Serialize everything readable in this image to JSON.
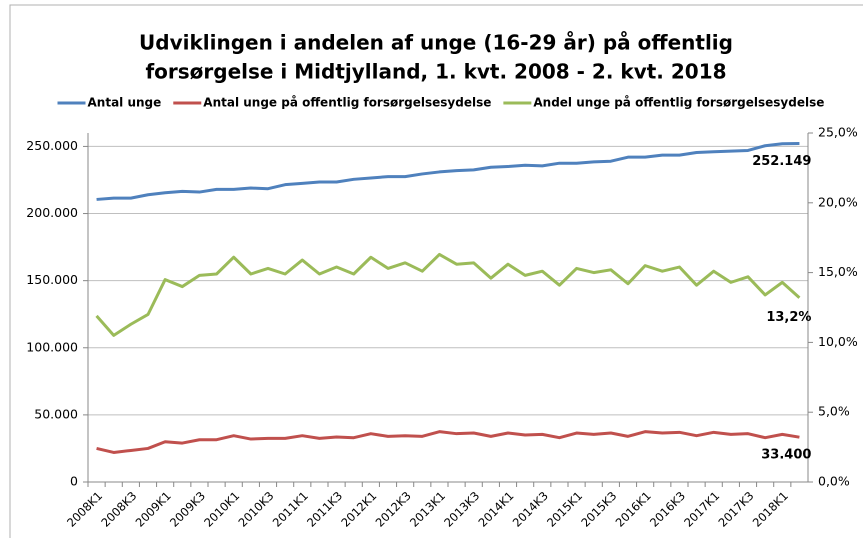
{
  "chart_data": {
    "type": "line",
    "title": [
      "Udviklingen i andelen af unge (16-29 år) på offentlig",
      "forsørgelse i Midtjylland, 1. kvt. 2008 - 2. kvt. 2018"
    ],
    "categories": [
      "2008K1",
      null,
      "2008K3",
      null,
      "2009K1",
      null,
      "2009K3",
      null,
      "2010K1",
      null,
      "2010K3",
      null,
      "2011K1",
      null,
      "2011K3",
      null,
      "2012K1",
      null,
      "2012K3",
      null,
      "2013K1",
      null,
      "2013K3",
      null,
      "2014K1",
      null,
      "2014K3",
      null,
      "2015K1",
      null,
      "2015K3",
      null,
      "2016K1",
      null,
      "2016K3",
      null,
      "2017K1",
      null,
      "2017K3",
      null,
      "2018K1",
      null
    ],
    "series": [
      {
        "name": "Antal unge",
        "color": "#4f81bd",
        "values": [
          210500,
          211500,
          211500,
          214000,
          215500,
          216500,
          216000,
          218000,
          218000,
          219000,
          218500,
          221500,
          222500,
          223500,
          223500,
          225500,
          226500,
          227500,
          227500,
          229500,
          231000,
          232000,
          232500,
          234500,
          235000,
          236000,
          235500,
          237500,
          237500,
          238500,
          239000,
          242000,
          242000,
          243500,
          243500,
          245500,
          246000,
          246500,
          247000,
          250500,
          252000,
          252149
        ],
        "value_labels": [
          null,
          null,
          null,
          null,
          null,
          null,
          null,
          null,
          null,
          null,
          null,
          null,
          null,
          null,
          null,
          null,
          null,
          null,
          null,
          null,
          null,
          null,
          null,
          null,
          null,
          null,
          null,
          null,
          null,
          null,
          null,
          null,
          null,
          null,
          null,
          null,
          null,
          null,
          null,
          null,
          null,
          "252.149"
        ]
      },
      {
        "name": "Antal unge på offentlig forsørgelsesydelse",
        "color": "#c0504d",
        "values": [
          25000,
          22000,
          23500,
          25000,
          30000,
          29000,
          31500,
          31500,
          34500,
          32000,
          32500,
          32500,
          34500,
          32500,
          33500,
          33000,
          36000,
          34000,
          34500,
          34000,
          37500,
          36000,
          36500,
          34000,
          36500,
          35000,
          35500,
          33000,
          36500,
          35500,
          36500,
          34000,
          37500,
          36500,
          37000,
          34500,
          37000,
          35500,
          36000,
          33000,
          35500,
          33400
        ],
        "value_labels": [
          null,
          null,
          null,
          null,
          null,
          null,
          null,
          null,
          null,
          null,
          null,
          null,
          null,
          null,
          null,
          null,
          null,
          null,
          null,
          null,
          null,
          null,
          null,
          null,
          null,
          null,
          null,
          null,
          null,
          null,
          null,
          null,
          null,
          null,
          null,
          null,
          null,
          null,
          null,
          null,
          null,
          "33.400"
        ]
      },
      {
        "name": "Andel unge på offentlig forsørgelsesydelse",
        "color": "#9bbb59",
        "axis": "y2",
        "values": [
          11.9,
          10.5,
          11.3,
          12.0,
          14.5,
          14.0,
          14.8,
          14.9,
          16.1,
          14.9,
          15.3,
          14.9,
          15.9,
          14.9,
          15.4,
          14.9,
          16.1,
          15.3,
          15.7,
          15.1,
          16.3,
          15.6,
          15.7,
          14.6,
          15.6,
          14.8,
          15.1,
          14.1,
          15.3,
          15.0,
          15.2,
          14.2,
          15.5,
          15.1,
          15.4,
          14.1,
          15.1,
          14.3,
          14.7,
          13.4,
          14.3,
          13.2
        ],
        "value_labels": [
          null,
          null,
          null,
          null,
          null,
          null,
          null,
          null,
          null,
          null,
          null,
          null,
          null,
          null,
          null,
          null,
          null,
          null,
          null,
          null,
          null,
          null,
          null,
          null,
          null,
          null,
          null,
          null,
          null,
          null,
          null,
          null,
          null,
          null,
          null,
          null,
          null,
          null,
          null,
          null,
          null,
          "13,2%"
        ]
      }
    ],
    "ylim": [
      0,
      260000
    ],
    "yticks": [
      {
        "value": 0,
        "label": "0"
      },
      {
        "value": 50000,
        "label": "50.000"
      },
      {
        "value": 100000,
        "label": "100.000"
      },
      {
        "value": 150000,
        "label": "150.000"
      },
      {
        "value": 200000,
        "label": "200.000"
      },
      {
        "value": 250000,
        "label": "250.000"
      }
    ],
    "y2lim": [
      0,
      25
    ],
    "y2ticks": [
      {
        "value": 0,
        "label": "0,0%"
      },
      {
        "value": 5,
        "label": "5,0%"
      },
      {
        "value": 10,
        "label": "10,0%"
      },
      {
        "value": 15,
        "label": "15,0%"
      },
      {
        "value": 20,
        "label": "20,0%"
      },
      {
        "value": 25,
        "label": "25,0%"
      }
    ],
    "grid": true,
    "legend": "top"
  }
}
